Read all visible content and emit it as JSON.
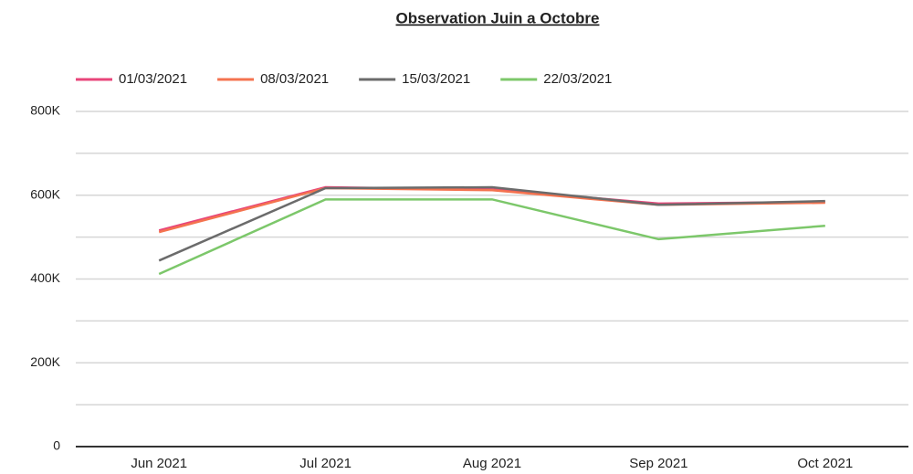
{
  "chart_data": {
    "type": "line",
    "title": "Observation Juin a Octobre",
    "categories": [
      "Jun 2021",
      "Jul 2021",
      "Aug 2021",
      "Sep 2021",
      "Oct 2021"
    ],
    "series": [
      {
        "name": "01/03/2021",
        "color": "#e8457a",
        "values": [
          516000,
          619000,
          614000,
          580000,
          584000
        ]
      },
      {
        "name": "08/03/2021",
        "color": "#f4734f",
        "values": [
          512000,
          617000,
          612000,
          577000,
          582000
        ]
      },
      {
        "name": "15/03/2021",
        "color": "#6b6b6b",
        "values": [
          444000,
          617000,
          619000,
          577000,
          586000
        ]
      },
      {
        "name": "22/03/2021",
        "color": "#7cc76a",
        "values": [
          412000,
          590000,
          590000,
          495000,
          527000
        ]
      }
    ],
    "ylim": [
      0,
      800000
    ],
    "yticks": [
      0,
      {
        "value": 200000,
        "label": "200K"
      },
      {
        "value": 400000,
        "label": "400K"
      },
      {
        "value": 600000,
        "label": "600K"
      },
      {
        "value": 800000,
        "label": "800K"
      }
    ],
    "yminor": [
      100000,
      300000,
      500000,
      700000
    ],
    "grid": true,
    "legend": "top"
  }
}
